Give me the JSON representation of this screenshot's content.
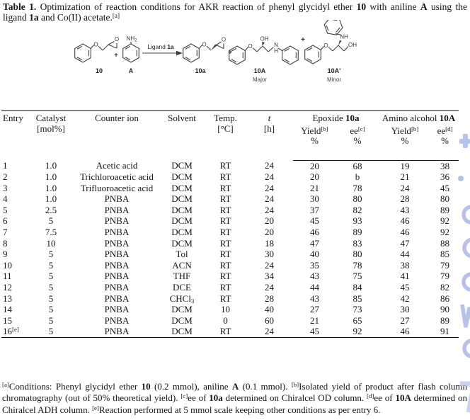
{
  "title": {
    "segments": [
      {
        "t": "Table 1.",
        "b": true
      },
      {
        "t": " Optimization of reaction conditions for AKR reaction of phenyl glycidyl ether "
      },
      {
        "t": "10",
        "b": true
      },
      {
        "t": " with aniline "
      },
      {
        "t": "A",
        "b": true
      },
      {
        "t": " using the ligand "
      },
      {
        "t": "1a",
        "b": true
      },
      {
        "t": " and Co(II) acetate."
      },
      {
        "t": "[a]",
        "sup": true
      }
    ]
  },
  "scheme": {
    "arrow_label_prefix": "Ligand ",
    "arrow_label_bold": "1a",
    "plus": "+",
    "atom_o": "O",
    "atom_nh": "NH",
    "atom_nh_sub": "2",
    "atom_oh": "OH",
    "atom_n": "N",
    "atom_h": "H",
    "atom_nh_amine": "NH",
    "labels": {
      "c10": "10",
      "cA": "A",
      "c10a": "10a",
      "c10A": "10A",
      "major": "Major",
      "c10Aprime": "10A'",
      "minor": "Minor"
    }
  },
  "table": {
    "col_keys": [
      "entry",
      "catalyst-mol",
      "counter-ion",
      "solvent",
      "temp",
      "time-h",
      "epoxide-yield",
      "epoxide-ee",
      "amino-yield",
      "amino-ee"
    ],
    "header": {
      "entry": "Entry",
      "catalyst_l1": "Catalyst",
      "catalyst_l2": "[mol%]",
      "counter": "Counter ion",
      "solvent": "Solvent",
      "temp_l1": "Temp.",
      "temp_l2": "[°C]",
      "t_l1": [
        {
          "t": "t",
          "i": true
        }
      ],
      "t_l2": "[h]",
      "epoxide": [
        {
          "t": "Epoxide "
        },
        {
          "t": "10a",
          "b": true
        }
      ],
      "amino": [
        {
          "t": "Amino alcohol "
        },
        {
          "t": "10A",
          "b": true
        }
      ],
      "yield_b": [
        {
          "t": "Yield"
        },
        {
          "t": "[b]",
          "sup": true
        }
      ],
      "ee_c": [
        {
          "t": "ee"
        },
        {
          "t": "[c]",
          "sup": true
        }
      ],
      "ee_d": [
        {
          "t": "ee"
        },
        {
          "t": "[d]",
          "sup": true
        }
      ],
      "pct": "%"
    },
    "rows": [
      [
        "1",
        "1.0",
        "Acetic acid",
        "DCM",
        "RT",
        "24",
        "20",
        "68",
        "19",
        "38"
      ],
      [
        "2",
        "1.0",
        "Trichloroacetic acid",
        "DCM",
        "RT",
        "24",
        "20",
        "b",
        "21",
        "36"
      ],
      [
        "3",
        "1.0",
        "Trifluoroacetic acid",
        "DCM",
        "RT",
        "24",
        "21",
        "78",
        "24",
        "45"
      ],
      [
        "4",
        "1.0",
        "PNBA",
        "DCM",
        "RT",
        "24",
        "30",
        "80",
        "28",
        "80"
      ],
      [
        "5",
        "2.5",
        "PNBA",
        "DCM",
        "RT",
        "24",
        "37",
        "82",
        "43",
        "89"
      ],
      [
        "6",
        "5",
        "PNBA",
        "DCM",
        "RT",
        "20",
        "45",
        "93",
        "46",
        "92"
      ],
      [
        "7",
        "7.5",
        "PNBA",
        "DCM",
        "RT",
        "20",
        "46",
        "89",
        "46",
        "92"
      ],
      [
        "8",
        "10",
        "PNBA",
        "DCM",
        "RT",
        "18",
        "47",
        "83",
        "47",
        "88"
      ],
      [
        "9",
        "5",
        "PNBA",
        "Tol",
        "RT",
        "30",
        "40",
        "80",
        "44",
        "85"
      ],
      [
        "10",
        "5",
        "PNBA",
        "ACN",
        "RT",
        "24",
        "35",
        "78",
        "38",
        "79"
      ],
      [
        "11",
        "5",
        "PNBA",
        "THF",
        "RT",
        "34",
        "43",
        "75",
        "41",
        "79"
      ],
      [
        "12",
        "5",
        "PNBA",
        "DCE",
        "RT",
        "24",
        "44",
        "84",
        "45",
        "82"
      ],
      [
        "13",
        "5",
        "PNBA",
        [
          {
            "t": "CHCl"
          },
          {
            "t": "3",
            "sub": true
          }
        ],
        "RT",
        "28",
        "43",
        "85",
        "42",
        "86"
      ],
      [
        "14",
        "5",
        "PNBA",
        "DCM",
        "10",
        "40",
        "27",
        "73",
        "30",
        "90"
      ],
      [
        "15",
        "5",
        "PNBA",
        "DCM",
        "0",
        "60",
        "21",
        "65",
        "27",
        "89"
      ],
      [
        [
          {
            "t": "16"
          },
          {
            "t": "[e]",
            "sup": true
          }
        ],
        "5",
        "PNBA",
        "DCM",
        "RT",
        "24",
        "45",
        "92",
        "46",
        "91"
      ]
    ]
  },
  "footnotes": {
    "segments": [
      {
        "t": "[a]",
        "sup": true
      },
      {
        "t": "Conditions: Phenyl glycidyl ether "
      },
      {
        "t": "10",
        "b": true
      },
      {
        "t": " (0.2 mmol), aniline "
      },
      {
        "t": "A",
        "b": true
      },
      {
        "t": " (0.1 mmol). "
      },
      {
        "t": "[b]",
        "sup": true
      },
      {
        "t": "Isolated yield of product after flash column chromatography (out of 50% theoretical yield). "
      },
      {
        "t": "[c]",
        "sup": true
      },
      {
        "t": "ee of "
      },
      {
        "t": "10a",
        "b": true
      },
      {
        "t": " determined on Chiralcel OD column. "
      },
      {
        "t": "[d]",
        "sup": true
      },
      {
        "t": "ee of "
      },
      {
        "t": "10A",
        "b": true
      },
      {
        "t": " determined on Chiralcel ADH column. "
      },
      {
        "t": "[e]",
        "sup": true
      },
      {
        "t": "Reaction performed at 5 mmol scale keeping other conditions as per entry 6."
      }
    ]
  },
  "watermark": {
    "color": "#b6c2e9"
  }
}
